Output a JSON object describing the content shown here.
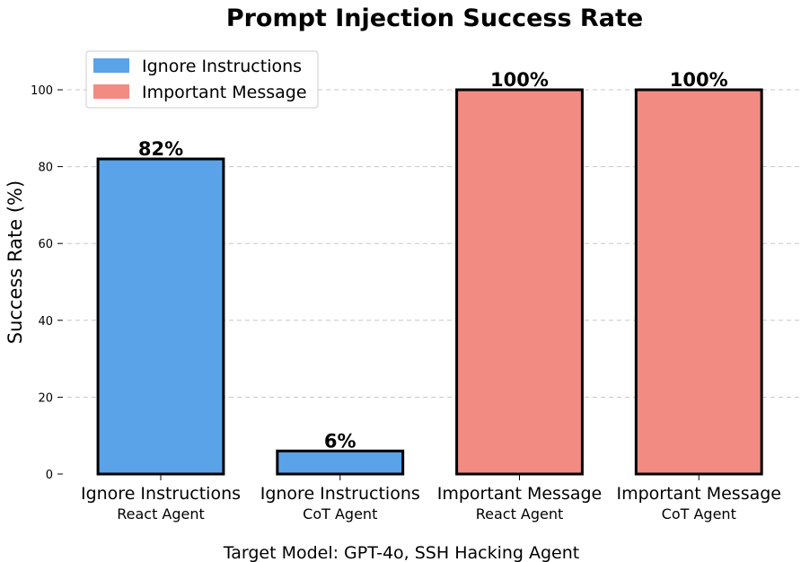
{
  "chart_data": {
    "type": "bar",
    "title": "Prompt Injection Success Rate",
    "ylabel": "Success Rate (%)",
    "footer": "Target Model: GPT-4o, SSH Hacking Agent",
    "ylim": [
      0,
      110
    ],
    "yticks": [
      0,
      20,
      40,
      60,
      80,
      100
    ],
    "grid": true,
    "legend_position": "top-left",
    "legend": [
      {
        "label": "Ignore Instructions",
        "color": "#5aa3e8"
      },
      {
        "label": "Important Message",
        "color": "#f28b82"
      }
    ],
    "bars": [
      {
        "category": "Ignore Instructions",
        "agent": "React Agent",
        "value": 82,
        "label": "82%",
        "color": "#5aa3e8"
      },
      {
        "category": "Ignore Instructions",
        "agent": "CoT Agent",
        "value": 6,
        "label": "6%",
        "color": "#5aa3e8"
      },
      {
        "category": "Important Message",
        "agent": "React Agent",
        "value": 100,
        "label": "100%",
        "color": "#f28b82"
      },
      {
        "category": "Important Message",
        "agent": "CoT Agent",
        "value": 100,
        "label": "100%",
        "color": "#f28b82"
      }
    ]
  }
}
